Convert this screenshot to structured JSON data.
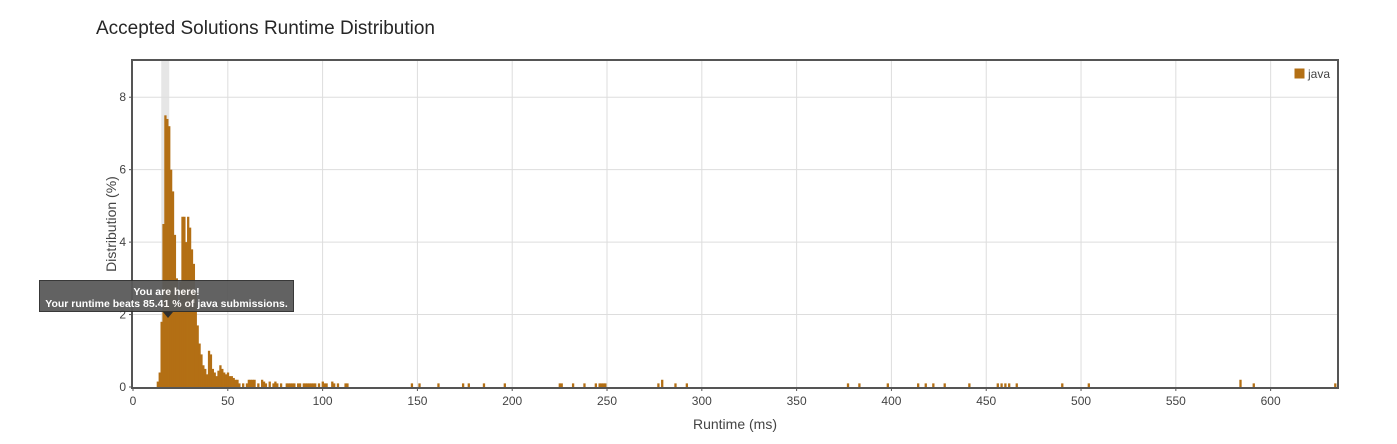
{
  "page": {
    "title": "Accepted Solutions Runtime Distribution"
  },
  "tooltip": {
    "line1": "You are here!",
    "line2": "Your runtime beats 85.41 % of java submissions."
  },
  "chart_data": {
    "type": "bar",
    "title": "Accepted Solutions Runtime Distribution",
    "xlabel": "Runtime (ms)",
    "ylabel": "Distribution (%)",
    "xlim": [
      0,
      635
    ],
    "ylim": [
      0,
      9
    ],
    "xticks": [
      0,
      50,
      100,
      150,
      200,
      250,
      300,
      350,
      400,
      450,
      500,
      550,
      600
    ],
    "yticks": [
      0,
      2,
      4,
      6,
      8
    ],
    "grid": true,
    "legend": "top-right",
    "bar_color": "#b36f14",
    "highlight_x": 17,
    "highlight_color": "#e6e6e6",
    "series": [
      {
        "name": "java",
        "x": [
          13,
          14,
          15,
          16,
          17,
          18,
          19,
          20,
          21,
          22,
          23,
          24,
          25,
          26,
          27,
          28,
          29,
          30,
          31,
          32,
          33,
          34,
          35,
          36,
          37,
          38,
          39,
          40,
          41,
          42,
          43,
          44,
          45,
          46,
          47,
          48,
          49,
          50,
          51,
          52,
          53,
          54,
          55,
          56,
          58,
          60,
          61,
          62,
          63,
          64,
          66,
          68,
          69,
          70,
          72,
          74,
          75,
          76,
          78,
          81,
          82,
          83,
          84,
          85,
          87,
          88,
          90,
          91,
          92,
          93,
          94,
          95,
          96,
          98,
          100,
          101,
          102,
          105,
          106,
          108,
          112,
          113,
          147,
          151,
          161,
          174,
          177,
          185,
          196,
          225,
          226,
          232,
          238,
          244,
          246,
          247,
          248,
          249,
          277,
          279,
          286,
          292,
          377,
          383,
          398,
          414,
          418,
          422,
          428,
          441,
          456,
          458,
          460,
          462,
          466,
          490,
          504,
          584,
          591,
          634
        ],
        "values": [
          0.15,
          0.4,
          1.8,
          4.5,
          7.5,
          7.4,
          7.2,
          6.0,
          5.4,
          4.2,
          3.0,
          2.3,
          2.9,
          4.7,
          4.7,
          4.0,
          4.7,
          4.4,
          3.8,
          3.4,
          2.6,
          1.7,
          1.2,
          0.9,
          0.6,
          0.5,
          0.35,
          1.0,
          0.9,
          0.5,
          0.4,
          0.3,
          0.45,
          0.6,
          0.5,
          0.4,
          0.35,
          0.4,
          0.3,
          0.3,
          0.25,
          0.2,
          0.2,
          0.1,
          0.1,
          0.1,
          0.2,
          0.2,
          0.2,
          0.2,
          0.1,
          0.2,
          0.15,
          0.1,
          0.15,
          0.1,
          0.15,
          0.1,
          0.1,
          0.1,
          0.1,
          0.1,
          0.1,
          0.1,
          0.1,
          0.1,
          0.1,
          0.1,
          0.1,
          0.1,
          0.1,
          0.1,
          0.1,
          0.1,
          0.15,
          0.1,
          0.1,
          0.15,
          0.1,
          0.1,
          0.1,
          0.1,
          0.1,
          0.1,
          0.1,
          0.1,
          0.1,
          0.1,
          0.1,
          0.1,
          0.1,
          0.1,
          0.1,
          0.1,
          0.1,
          0.1,
          0.1,
          0.1,
          0.1,
          0.2,
          0.1,
          0.1,
          0.1,
          0.1,
          0.1,
          0.1,
          0.1,
          0.1,
          0.1,
          0.1,
          0.1,
          0.1,
          0.1,
          0.1,
          0.1,
          0.1,
          0.1,
          0.2,
          0.1,
          0.1
        ]
      }
    ]
  }
}
